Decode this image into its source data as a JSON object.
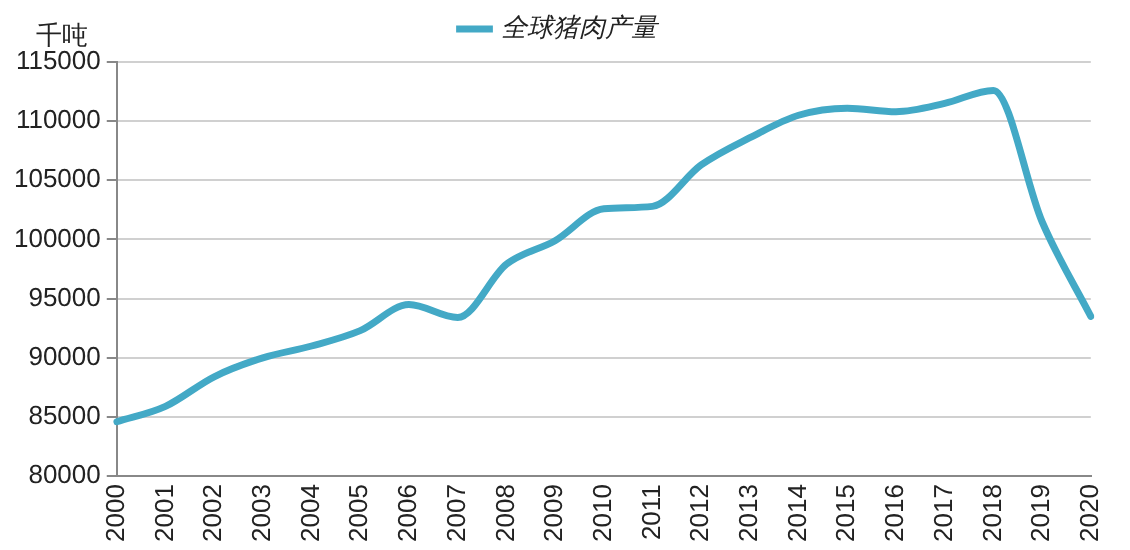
{
  "chart_data": {
    "type": "line",
    "ylabel": "千吨",
    "categories": [
      "2000",
      "2001",
      "2002",
      "2003",
      "2004",
      "2005",
      "2006",
      "2007",
      "2008",
      "2009",
      "2010",
      "2011",
      "2012",
      "2013",
      "2014",
      "2015",
      "2016",
      "2017",
      "2018",
      "2019",
      "2020"
    ],
    "series": [
      {
        "name": "全球猪肉产量",
        "color": "#43a9c6",
        "values": [
          84600,
          85900,
          88400,
          90000,
          91000,
          92300,
          94500,
          93400,
          97900,
          99900,
          102600,
          102800,
          106300,
          108600,
          110500,
          111100,
          110800,
          111500,
          112600,
          101500,
          93500
        ]
      }
    ],
    "ylim": [
      80000,
      115000
    ],
    "yticks": [
      80000,
      85000,
      90000,
      95000,
      100000,
      105000,
      110000,
      115000
    ],
    "grid": "y",
    "legend": "top",
    "marker": "none",
    "line_style": "solid"
  }
}
